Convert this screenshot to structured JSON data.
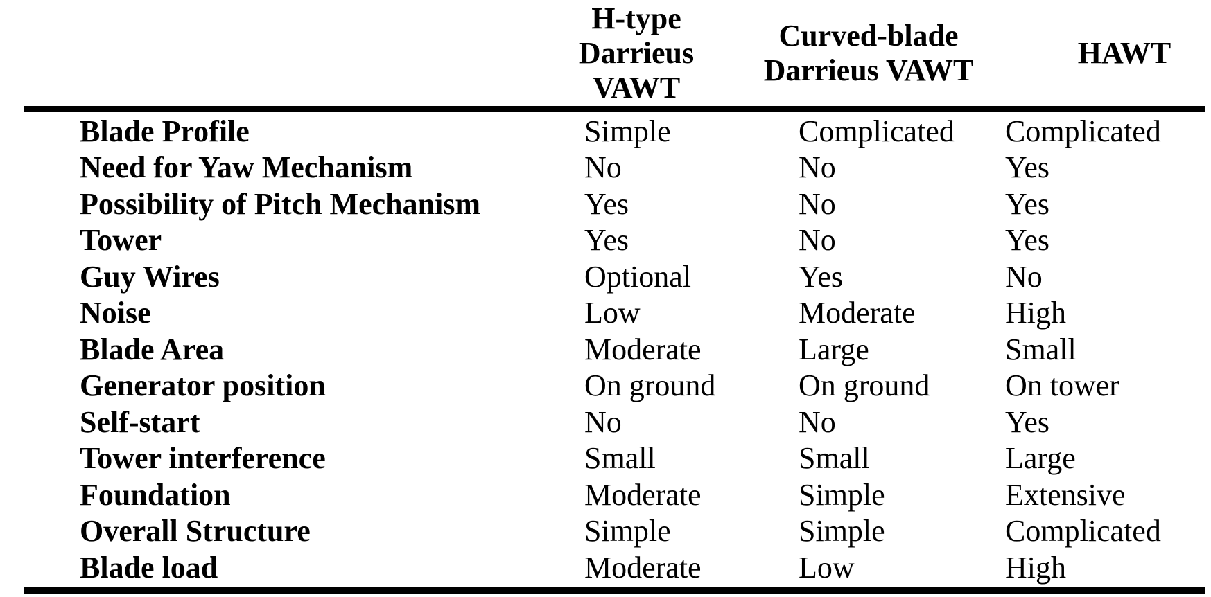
{
  "page": {
    "background_color": "#ffffff",
    "text_color": "#000000",
    "rule_color": "#000000"
  },
  "table": {
    "header": {
      "col2_lines": [
        "H-type",
        "Darrieus",
        "VAWT"
      ],
      "col3_lines": [
        "Curved-blade",
        "Darrieus VAWT"
      ],
      "col4_lines": [
        "HAWT"
      ]
    },
    "rows": [
      {
        "label": "Blade Profile",
        "values": [
          "Simple",
          "Complicated",
          "Complicated"
        ]
      },
      {
        "label": "Need for Yaw Mechanism",
        "values": [
          "No",
          "No",
          "Yes"
        ]
      },
      {
        "label": "Possibility of Pitch Mechanism",
        "values": [
          "Yes",
          "No",
          "Yes"
        ]
      },
      {
        "label": "Tower",
        "values": [
          "Yes",
          "No",
          "Yes"
        ]
      },
      {
        "label": "Guy Wires",
        "values": [
          "Optional",
          "Yes",
          "No"
        ]
      },
      {
        "label": "Noise",
        "values": [
          "Low",
          "Moderate",
          "High"
        ]
      },
      {
        "label": "Blade Area",
        "values": [
          "Moderate",
          "Large",
          "Small"
        ]
      },
      {
        "label": "Generator position",
        "values": [
          "On ground",
          "On ground",
          "On tower"
        ]
      },
      {
        "label": "Self-start",
        "values": [
          "No",
          "No",
          "Yes"
        ]
      },
      {
        "label": "Tower interference",
        "values": [
          "Small",
          "Small",
          "Large"
        ]
      },
      {
        "label": "Foundation",
        "values": [
          "Moderate",
          "Simple",
          "Extensive"
        ]
      },
      {
        "label": "Overall Structure",
        "values": [
          "Simple",
          "Simple",
          "Complicated"
        ]
      },
      {
        "label": "Blade load",
        "values": [
          "Moderate",
          "Low",
          "High"
        ]
      }
    ]
  }
}
